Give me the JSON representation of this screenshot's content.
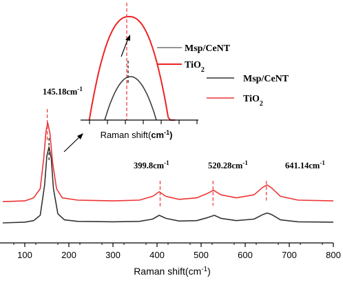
{
  "chart_data": [
    {
      "type": "line",
      "xlabel_main": "Raman shift",
      "xlabel_unit": "cm",
      "xlabel_exp": "-1",
      "xlim": [
        50,
        800
      ],
      "xticks": [
        100,
        200,
        300,
        400,
        500,
        600,
        700,
        800
      ],
      "y_axis_visible": false,
      "series": [
        {
          "name": "Msp/CeNT",
          "name_sub": "",
          "color": "#333333",
          "baseline": 0.0,
          "points": [
            [
              50,
              0.0
            ],
            [
              100,
              0.01
            ],
            [
              120,
              0.03
            ],
            [
              135,
              0.1
            ],
            [
              145,
              0.5
            ],
            [
              150,
              0.88
            ],
            [
              155,
              1.0
            ],
            [
              160,
              0.85
            ],
            [
              165,
              0.45
            ],
            [
              175,
              0.12
            ],
            [
              190,
              0.04
            ],
            [
              220,
              0.02
            ],
            [
              300,
              0.015
            ],
            [
              360,
              0.02
            ],
            [
              390,
              0.05
            ],
            [
              405,
              0.1
            ],
            [
              420,
              0.06
            ],
            [
              450,
              0.025
            ],
            [
              490,
              0.03
            ],
            [
              515,
              0.07
            ],
            [
              530,
              0.1
            ],
            [
              545,
              0.06
            ],
            [
              580,
              0.03
            ],
            [
              620,
              0.05
            ],
            [
              640,
              0.11
            ],
            [
              650,
              0.13
            ],
            [
              660,
              0.11
            ],
            [
              680,
              0.04
            ],
            [
              720,
              0.015
            ],
            [
              800,
              0.01
            ]
          ]
        },
        {
          "name": "TiO",
          "name_sub": "2",
          "color": "#ee3333",
          "baseline": 0.28,
          "points": [
            [
              50,
              0.28
            ],
            [
              100,
              0.29
            ],
            [
              120,
              0.33
            ],
            [
              135,
              0.45
            ],
            [
              143,
              0.85
            ],
            [
              148,
              1.2
            ],
            [
              152,
              1.32
            ],
            [
              157,
              1.18
            ],
            [
              163,
              0.8
            ],
            [
              172,
              0.45
            ],
            [
              185,
              0.33
            ],
            [
              220,
              0.3
            ],
            [
              300,
              0.29
            ],
            [
              360,
              0.3
            ],
            [
              390,
              0.35
            ],
            [
              405,
              0.41
            ],
            [
              420,
              0.35
            ],
            [
              450,
              0.31
            ],
            [
              490,
              0.33
            ],
            [
              515,
              0.39
            ],
            [
              528,
              0.43
            ],
            [
              545,
              0.37
            ],
            [
              580,
              0.33
            ],
            [
              620,
              0.37
            ],
            [
              640,
              0.47
            ],
            [
              650,
              0.5
            ],
            [
              660,
              0.46
            ],
            [
              680,
              0.35
            ],
            [
              720,
              0.3
            ],
            [
              800,
              0.29
            ]
          ]
        }
      ],
      "annotations": [
        {
          "x": 151,
          "label": "145.18cm",
          "exp": "-1"
        },
        {
          "x": 407,
          "label": "399.8cm",
          "exp": "-1"
        },
        {
          "x": 527,
          "label": "520.28cm",
          "exp": "-1"
        },
        {
          "x": 648,
          "label": "641.14cm",
          "exp": "-1"
        }
      ],
      "legend": {
        "placement": "top-right",
        "entries": [
          {
            "label": "Msp/CeNT",
            "sub": "",
            "color": "#333333"
          },
          {
            "label": "TiO",
            "sub": "2",
            "color": "#ee3333"
          }
        ]
      }
    },
    {
      "type": "line",
      "role": "inset",
      "xlabel_main": "Raman shift",
      "xlabel_unit": "cm",
      "xlabel_exp": "-1",
      "legend": {
        "placement": "top-right",
        "entries": [
          {
            "label": "Msp/CeNT",
            "sub": "",
            "color": "#555555"
          },
          {
            "label": "TiO",
            "sub": "2",
            "color": "#ee2222"
          }
        ]
      }
    }
  ]
}
